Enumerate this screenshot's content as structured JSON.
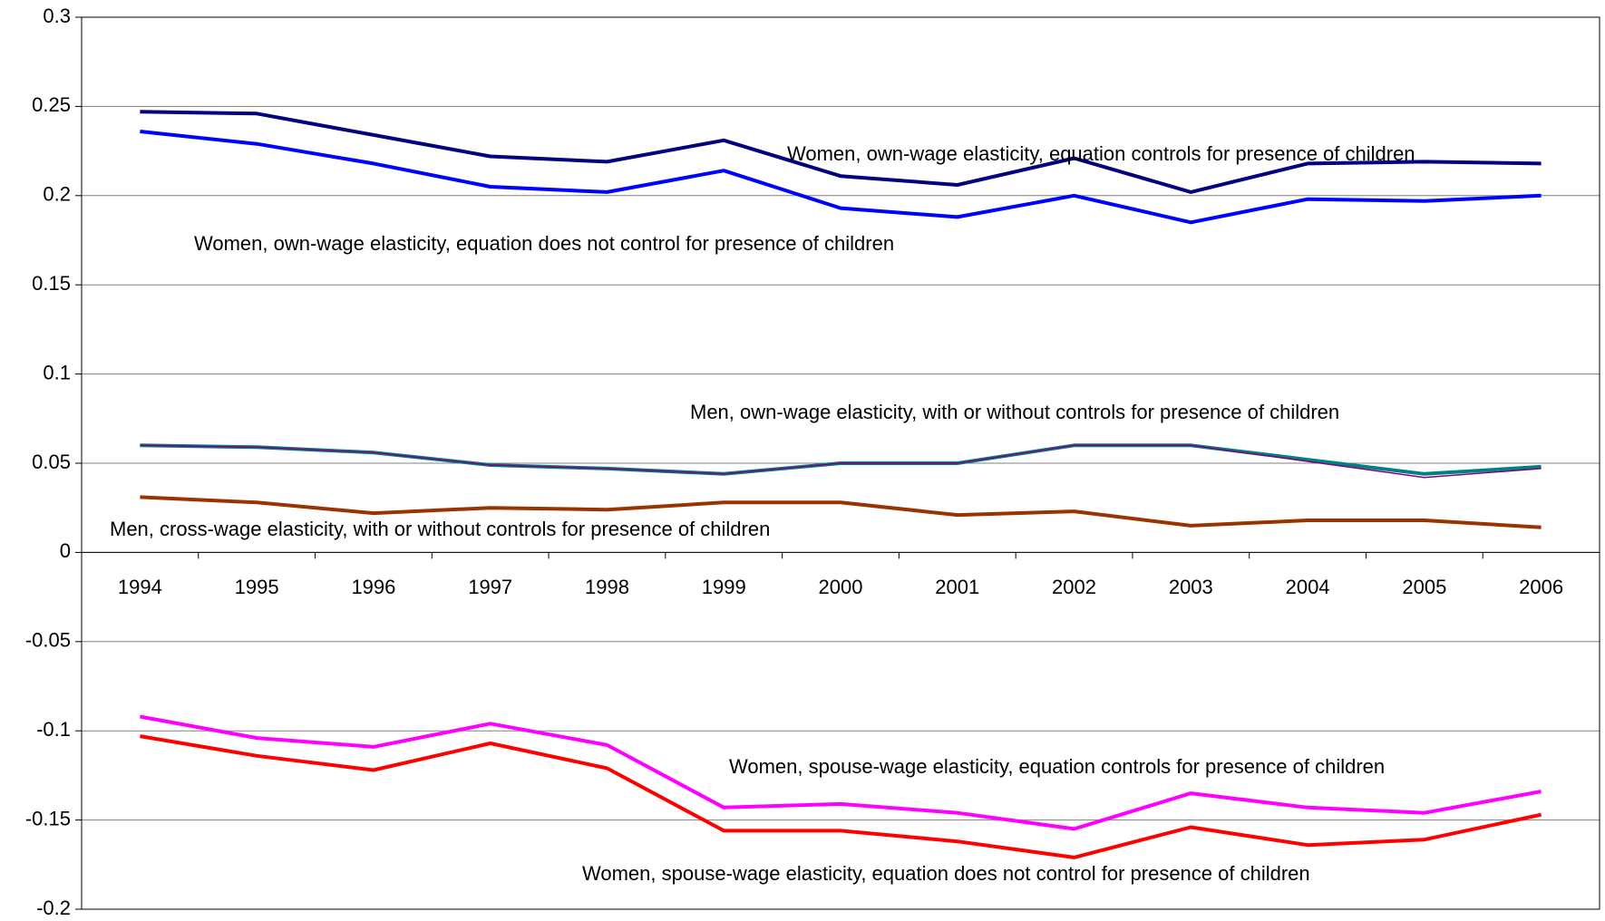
{
  "chart_data": {
    "type": "line",
    "categories": [
      "1994",
      "1995",
      "1996",
      "1997",
      "1998",
      "1999",
      "2000",
      "2001",
      "2002",
      "2003",
      "2004",
      "2005",
      "2006"
    ],
    "ylim": [
      -0.2,
      0.3
    ],
    "yticks": [
      -0.2,
      -0.15,
      -0.1,
      -0.05,
      0,
      0.05,
      0.1,
      0.15,
      0.2,
      0.25,
      0.3
    ],
    "grid": true,
    "series": [
      {
        "name": "Women, own-wage elasticity, equation controls for presence of children",
        "color": "#000080",
        "values": [
          0.247,
          0.246,
          0.234,
          0.222,
          0.219,
          0.231,
          0.211,
          0.206,
          0.221,
          0.202,
          0.218,
          0.219,
          0.218
        ]
      },
      {
        "name": "Women, own-wage elasticity, equation does not control for presence of children",
        "color": "#0000ff",
        "values": [
          0.236,
          0.229,
          0.218,
          0.205,
          0.202,
          0.214,
          0.193,
          0.188,
          0.2,
          0.185,
          0.198,
          0.197,
          0.2
        ]
      },
      {
        "name": "Men, own-wage elasticity, with or without controls for presence of children",
        "color": "#008080",
        "values": [
          0.06,
          0.059,
          0.056,
          0.049,
          0.047,
          0.044,
          0.05,
          0.05,
          0.06,
          0.06,
          0.052,
          0.044,
          0.048
        ]
      },
      {
        "color": "#800080",
        "values": [
          0.06,
          0.059,
          0.056,
          0.049,
          0.047,
          0.044,
          0.05,
          0.05,
          0.06,
          0.06,
          0.051,
          0.042,
          0.047
        ]
      },
      {
        "name": "Men, cross-wage elasticity, with or without controls for presence of children",
        "color": "#993300",
        "values": [
          0.031,
          0.028,
          0.022,
          0.025,
          0.024,
          0.028,
          0.028,
          0.021,
          0.023,
          0.015,
          0.018,
          0.018,
          0.014
        ]
      },
      {
        "name": "Women, spouse-wage elasticity, equation controls for presence of children",
        "color": "#ff00ff",
        "values": [
          -0.092,
          -0.104,
          -0.109,
          -0.096,
          -0.108,
          -0.143,
          -0.141,
          -0.146,
          -0.155,
          -0.135,
          -0.143,
          -0.146,
          -0.134
        ]
      },
      {
        "name": "Women, spouse-wage elasticity, equation does not control for presence of children",
        "color": "#ff0000",
        "values": [
          -0.103,
          -0.114,
          -0.122,
          -0.107,
          -0.121,
          -0.156,
          -0.156,
          -0.162,
          -0.171,
          -0.154,
          -0.164,
          -0.161,
          -0.147
        ]
      }
    ]
  }
}
